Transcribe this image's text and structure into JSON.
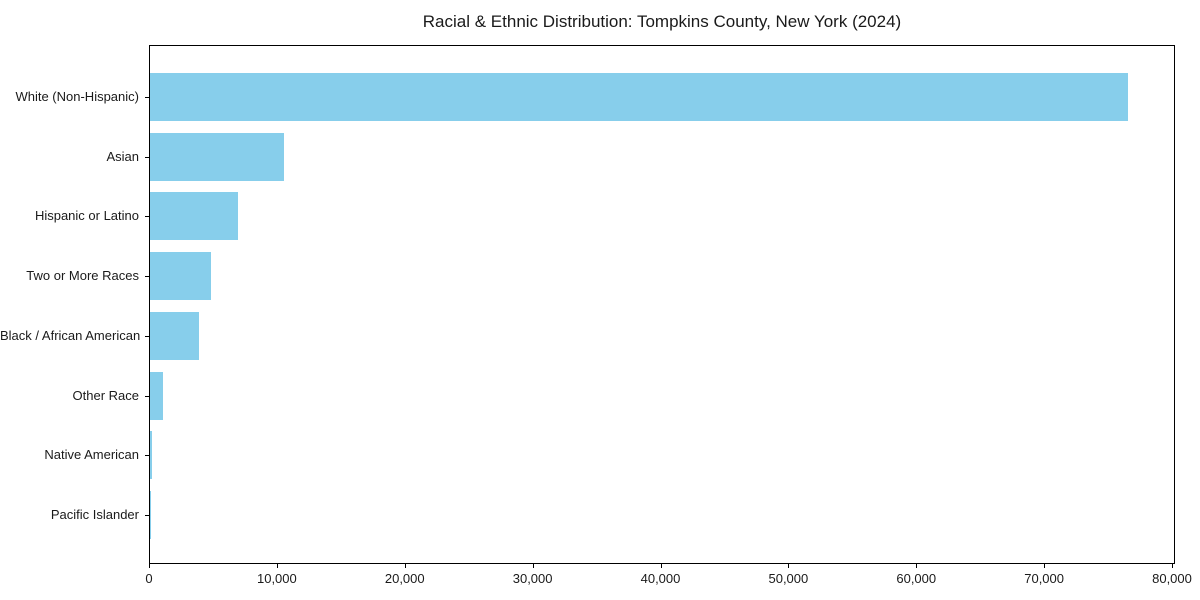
{
  "chart_data": {
    "type": "bar",
    "orientation": "horizontal",
    "title": "Racial & Ethnic Distribution: Tompkins County, New York (2024)",
    "categories": [
      "White (Non-Hispanic)",
      "Asian",
      "Hispanic or Latino",
      "Two or More Races",
      "Black / African American",
      "Other Race",
      "Native American",
      "Pacific Islander"
    ],
    "values": [
      76600,
      10480,
      6860,
      4780,
      3830,
      1020,
      130,
      30
    ],
    "bar_color": "#87CEEB",
    "xlabel": "",
    "ylabel": "",
    "xlim": [
      0,
      80235
    ],
    "xticks": [
      0,
      10000,
      20000,
      30000,
      40000,
      50000,
      60000,
      70000,
      80000
    ],
    "xtick_labels": [
      "0",
      "10,000",
      "20,000",
      "30,000",
      "40,000",
      "50,000",
      "60,000",
      "70,000",
      "80,000"
    ],
    "grid": false,
    "legend_position": "none"
  }
}
